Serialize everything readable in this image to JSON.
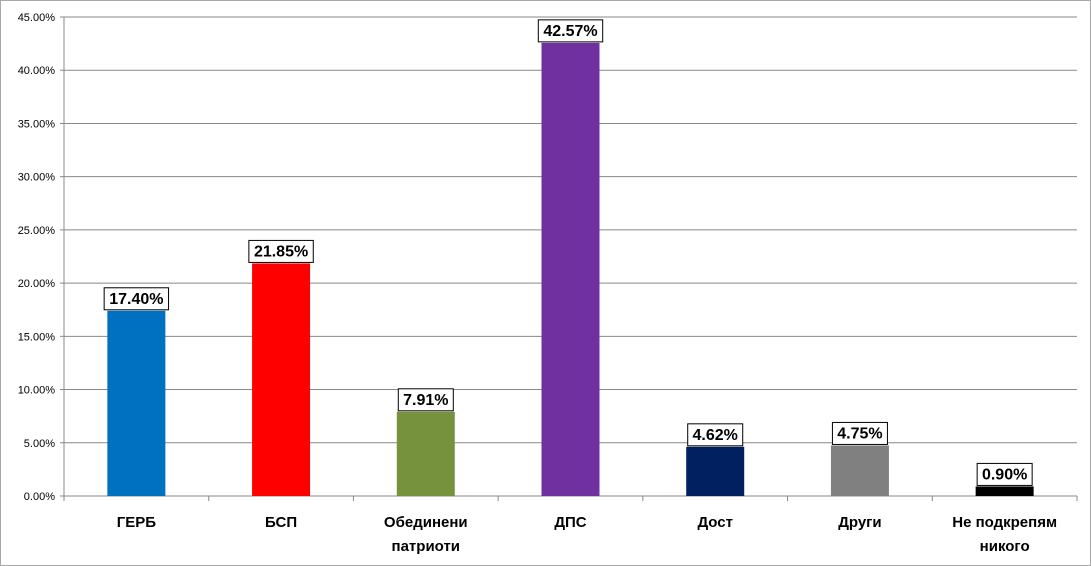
{
  "chart_data": {
    "type": "bar",
    "categories": [
      [
        "ГЕРБ"
      ],
      [
        "БСП"
      ],
      [
        "Обединени",
        "патриоти"
      ],
      [
        "ДПС"
      ],
      [
        "Дост"
      ],
      [
        "Други"
      ],
      [
        "Не подкрепям",
        "никого"
      ]
    ],
    "values": [
      17.4,
      21.85,
      7.91,
      42.57,
      4.62,
      4.75,
      0.9
    ],
    "data_labels": [
      "17.40%",
      "21.85%",
      "7.91%",
      "42.57%",
      "4.62%",
      "4.75%",
      "0.90%"
    ],
    "colors": [
      "#0070c0",
      "#ff0000",
      "#76923c",
      "#7030a0",
      "#002060",
      "#808080",
      "#000000"
    ],
    "ylim": [
      0,
      45
    ],
    "yticks": [
      0,
      5,
      10,
      15,
      20,
      25,
      30,
      35,
      40,
      45
    ],
    "ytick_labels": [
      "0.00%",
      "5.00%",
      "10.00%",
      "15.00%",
      "20.00%",
      "25.00%",
      "30.00%",
      "35.00%",
      "40.00%",
      "45.00%"
    ],
    "grid": true,
    "legend": false,
    "title": "",
    "xlabel": "",
    "ylabel": ""
  }
}
